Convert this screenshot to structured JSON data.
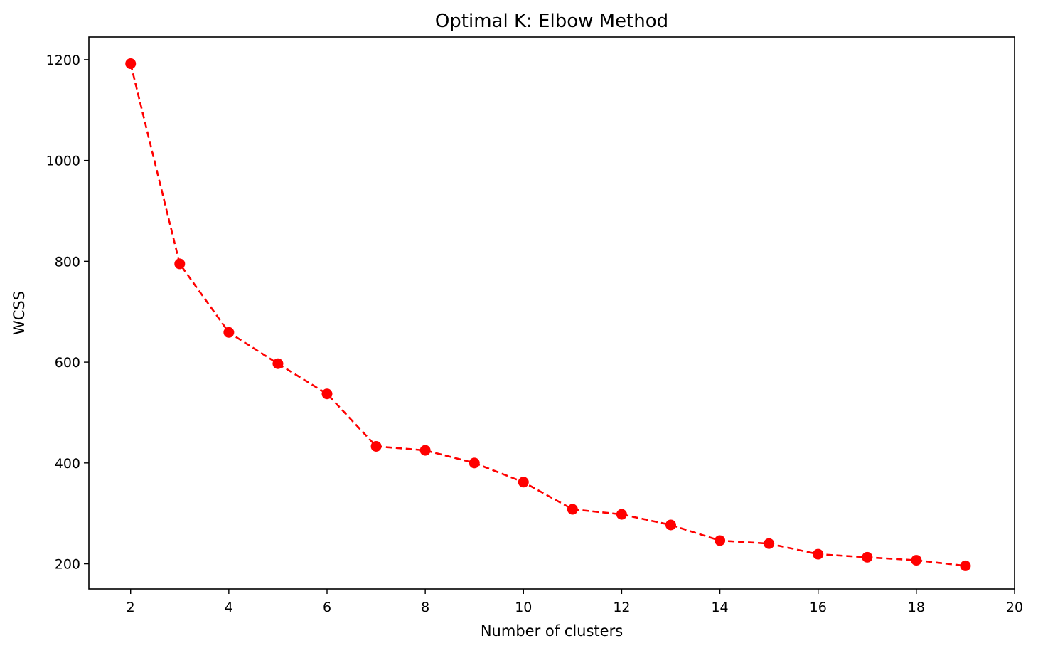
{
  "chart_data": {
    "type": "line",
    "title": "Optimal K: Elbow Method",
    "xlabel": "Number of clusters",
    "ylabel": "WCSS",
    "xlim": [
      1.15,
      20
    ],
    "ylim": [
      150,
      1245
    ],
    "xticks": [
      "2",
      "4",
      "6",
      "8",
      "10",
      "12",
      "14",
      "16",
      "18",
      "20"
    ],
    "yticks": [
      "200",
      "400",
      "600",
      "800",
      "1000",
      "1200"
    ],
    "grid": false,
    "series": [
      {
        "color": "#ff0000",
        "line_style": "dashed",
        "marker": "circle",
        "x": [
          2,
          3,
          4,
          5,
          6,
          7,
          8,
          9,
          10,
          11,
          12,
          13,
          14,
          15,
          16,
          17,
          18,
          19
        ],
        "y": [
          1192,
          795,
          659,
          597,
          537,
          433,
          425,
          400,
          362,
          308,
          298,
          277,
          246,
          240,
          219,
          213,
          207,
          196
        ]
      }
    ]
  }
}
